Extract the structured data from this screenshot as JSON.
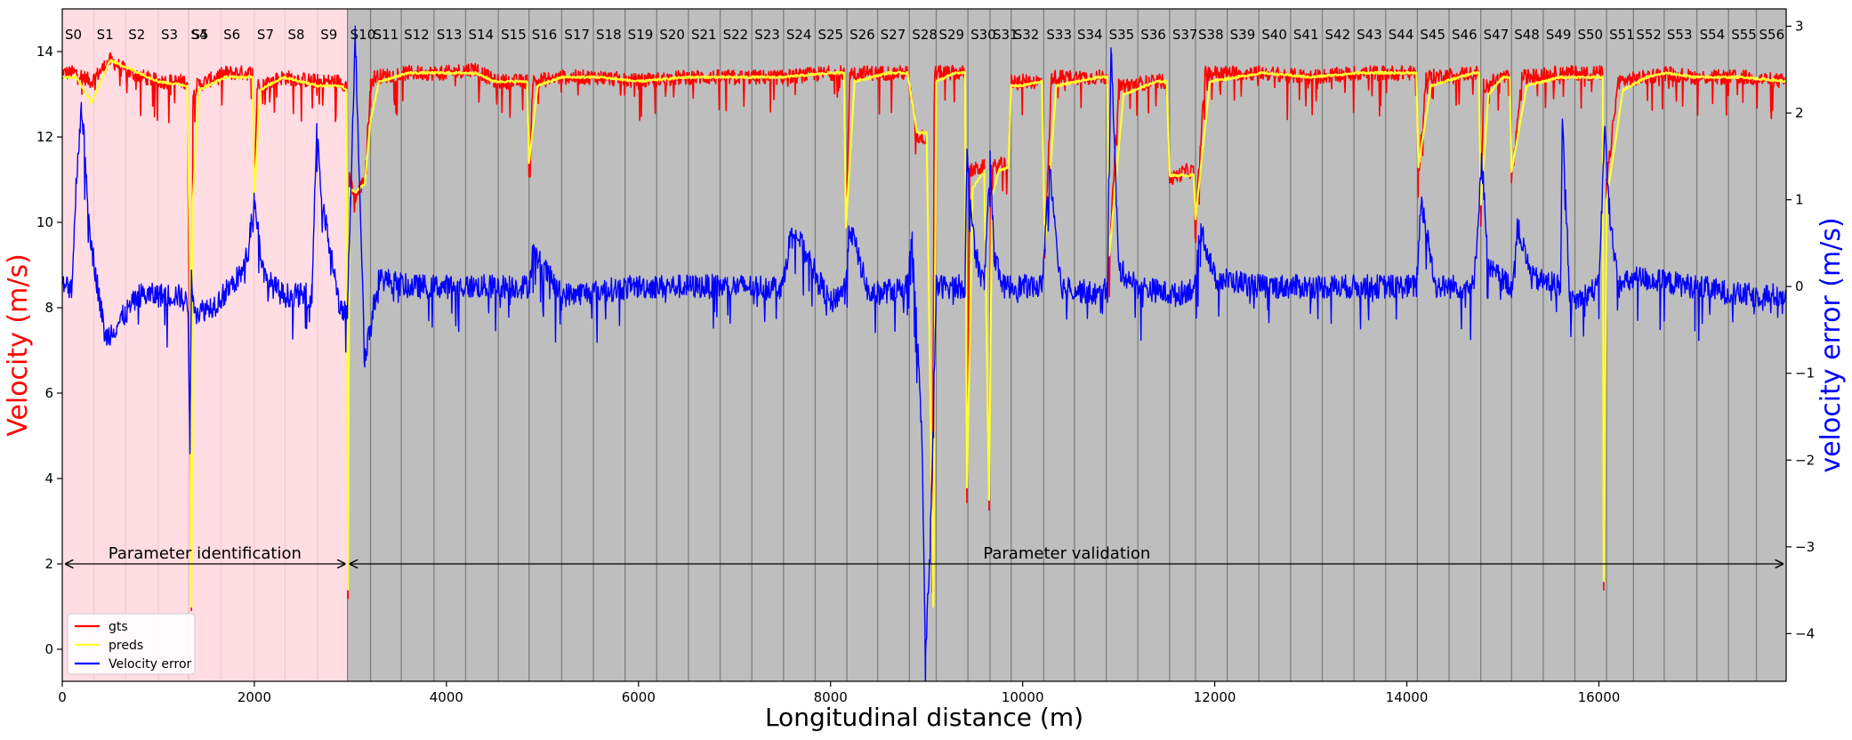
{
  "chart_data": {
    "type": "line",
    "xlabel": "Longitudinal distance (m)",
    "ylabel_left": "Velocity (m/s)",
    "ylabel_right": "velocity error (m/s)",
    "xlim": [
      0,
      17950
    ],
    "ylim_left": [
      -0.75,
      15.0
    ],
    "ylim_right": [
      -4.55,
      3.2
    ],
    "x_ticks": [
      "0",
      "2000",
      "4000",
      "6000",
      "8000",
      "10000",
      "12000",
      "14000",
      "16000"
    ],
    "y_left_ticks": [
      "0",
      "2",
      "4",
      "6",
      "8",
      "10",
      "12",
      "14"
    ],
    "y_right_ticks": [
      "−4",
      "−3",
      "−2",
      "−1",
      "0",
      "1",
      "2",
      "3"
    ],
    "grid": false,
    "colors": {
      "gts": "#ff0000",
      "preds": "#ffff33",
      "error": "#0000ff",
      "identification_bg": "#ffdde3",
      "validation_bg": "#bebebe",
      "left_label": "#ff0000",
      "right_label": "#0000ff"
    },
    "regions": [
      {
        "label": "Parameter identification",
        "x_start": 0,
        "x_end": 2970,
        "fill": "pink"
      },
      {
        "label": "Parameter validation",
        "x_start": 2970,
        "x_end": 17950,
        "fill": "gray"
      }
    ],
    "annotation_arrow_y": 2.0,
    "segment_boundaries": [
      0,
      330,
      660,
      1000,
      1310,
      1320,
      1650,
      2000,
      2320,
      2660,
      2970,
      3210,
      3530,
      3870,
      4200,
      4540,
      4860,
      5200,
      5530,
      5860,
      6190,
      6520,
      6850,
      7180,
      7510,
      7840,
      8170,
      8490,
      8820,
      9100,
      9430,
      9660,
      9880,
      10220,
      10540,
      10870,
      11200,
      11530,
      11800,
      12130,
      12460,
      12790,
      13120,
      13450,
      13780,
      14110,
      14440,
      14770,
      15090,
      15420,
      15750,
      16080,
      16360,
      16680,
      17020,
      17350,
      17640
    ],
    "segment_labels": [
      "S0",
      "S1",
      "S2",
      "S3",
      "S4",
      "S5",
      "S6",
      "S7",
      "S8",
      "S9",
      "S10",
      "S11",
      "S12",
      "S13",
      "S14",
      "S15",
      "S16",
      "S17",
      "S18",
      "S19",
      "S20",
      "S21",
      "S22",
      "S23",
      "S24",
      "S25",
      "S26",
      "S27",
      "S28",
      "S29",
      "S30",
      "S31",
      "S32",
      "S33",
      "S34",
      "S35",
      "S36",
      "S37",
      "S38",
      "S39",
      "S40",
      "S41",
      "S42",
      "S43",
      "S44",
      "S45",
      "S46",
      "S47",
      "S48",
      "S49",
      "S50",
      "S51",
      "S52",
      "S53",
      "S54",
      "S55",
      "S56"
    ],
    "series": [
      {
        "name": "gts",
        "x": [
          0,
          150,
          300,
          500,
          700,
          1000,
          1300,
          1330,
          1345,
          1360,
          1400,
          1700,
          1980,
          2000,
          2030,
          2300,
          2660,
          2900,
          2960,
          2975,
          2990,
          3050,
          3150,
          3210,
          3250,
          3600,
          4000,
          4300,
          4500,
          4840,
          4860,
          4900,
          5200,
          5600,
          6000,
          6500,
          7000,
          7500,
          8000,
          8140,
          8160,
          8200,
          8600,
          8800,
          8900,
          9000,
          9050,
          9060,
          9080,
          9300,
          9400,
          9420,
          9450,
          9600,
          9650,
          9670,
          9700,
          9850,
          9880,
          9950,
          10200,
          10230,
          10300,
          10800,
          10880,
          10900,
          11000,
          11400,
          11500,
          11530,
          11700,
          11780,
          11800,
          11900,
          12500,
          13000,
          13500,
          14000,
          14100,
          14120,
          14200,
          14700,
          14750,
          14770,
          14800,
          15000,
          15070,
          15090,
          15200,
          15600,
          15700,
          16040,
          16050,
          16080,
          16200,
          16500,
          16700,
          17000,
          17500,
          17950
        ],
        "y": [
          13.5,
          13.5,
          13.3,
          13.8,
          13.5,
          13.3,
          13.3,
          6.0,
          0.8,
          13.0,
          13.2,
          13.5,
          13.5,
          10.8,
          13.2,
          13.4,
          13.3,
          13.3,
          13.2,
          1.2,
          11.0,
          10.6,
          11.0,
          13.2,
          13.4,
          13.5,
          13.5,
          13.6,
          13.3,
          13.3,
          11.2,
          13.3,
          13.4,
          13.4,
          13.3,
          13.4,
          13.4,
          13.4,
          13.5,
          13.5,
          9.8,
          13.5,
          13.5,
          13.5,
          12.0,
          12.0,
          3.7,
          1.2,
          13.5,
          13.5,
          13.5,
          3.6,
          11.2,
          11.3,
          3.4,
          11.2,
          11.3,
          11.4,
          13.3,
          13.3,
          13.3,
          9.2,
          13.4,
          13.4,
          13.4,
          9.0,
          13.2,
          13.3,
          13.3,
          11.0,
          11.2,
          11.2,
          10.0,
          13.5,
          13.5,
          13.4,
          13.5,
          13.5,
          13.5,
          11.1,
          13.4,
          13.5,
          13.5,
          10.2,
          13.2,
          13.4,
          13.4,
          11.0,
          13.4,
          13.5,
          13.5,
          13.5,
          1.4,
          10.9,
          13.3,
          13.4,
          13.5,
          13.4,
          13.4,
          13.3
        ],
        "color": "#ff0000"
      },
      {
        "name": "preds",
        "x": [
          0,
          150,
          300,
          500,
          700,
          1000,
          1300,
          1330,
          1345,
          1360,
          1420,
          1700,
          1980,
          2000,
          2060,
          2300,
          2660,
          2900,
          2960,
          2975,
          2990,
          3050,
          3150,
          3210,
          3300,
          3600,
          4000,
          4300,
          4500,
          4840,
          4860,
          4950,
          5200,
          5600,
          6000,
          6500,
          7000,
          7500,
          8000,
          8140,
          8160,
          8250,
          8600,
          8800,
          8900,
          9000,
          9050,
          9070,
          9100,
          9300,
          9400,
          9420,
          9480,
          9600,
          9650,
          9680,
          9750,
          9850,
          9880,
          9980,
          10200,
          10230,
          10350,
          10800,
          10880,
          10900,
          11050,
          11400,
          11500,
          11530,
          11700,
          11780,
          11800,
          11950,
          12500,
          13000,
          13500,
          14000,
          14100,
          14120,
          14250,
          14700,
          14750,
          14770,
          14850,
          15000,
          15070,
          15090,
          15250,
          15600,
          15700,
          16040,
          16050,
          16080,
          16250,
          16500,
          16700,
          17000,
          17500,
          17950
        ],
        "y": [
          13.4,
          13.4,
          12.8,
          13.8,
          13.6,
          13.3,
          13.2,
          9.0,
          1.0,
          10.5,
          13.1,
          13.4,
          13.4,
          10.6,
          13.1,
          13.4,
          13.2,
          13.2,
          13.1,
          1.4,
          10.8,
          10.7,
          10.9,
          12.4,
          13.3,
          13.5,
          13.5,
          13.5,
          13.3,
          13.3,
          11.4,
          13.2,
          13.4,
          13.4,
          13.3,
          13.4,
          13.4,
          13.4,
          13.5,
          13.5,
          9.9,
          13.3,
          13.5,
          13.5,
          12.1,
          12.1,
          4.0,
          1.0,
          13.3,
          13.5,
          13.5,
          3.8,
          10.8,
          11.2,
          3.5,
          10.6,
          11.2,
          11.3,
          13.2,
          13.2,
          13.3,
          9.4,
          13.2,
          13.4,
          13.4,
          9.2,
          13.0,
          13.3,
          13.3,
          11.1,
          11.1,
          11.1,
          10.1,
          13.3,
          13.5,
          13.4,
          13.5,
          13.5,
          13.5,
          11.3,
          13.2,
          13.5,
          13.5,
          10.4,
          13.0,
          13.4,
          13.4,
          11.2,
          13.2,
          13.4,
          13.4,
          13.4,
          1.6,
          10.5,
          13.1,
          13.4,
          13.5,
          13.4,
          13.4,
          13.3
        ],
        "color": "#ffff33"
      },
      {
        "name": "Velocity error",
        "x": [
          0,
          100,
          150,
          200,
          300,
          450,
          600,
          800,
          1000,
          1200,
          1310,
          1330,
          1345,
          1360,
          1400,
          1600,
          1900,
          2000,
          2100,
          2300,
          2600,
          2650,
          2700,
          2900,
          2970,
          3000,
          3050,
          3150,
          3300,
          3600,
          4000,
          4500,
          4860,
          4900,
          5200,
          6000,
          6500,
          7000,
          7500,
          7600,
          8000,
          8150,
          8200,
          8400,
          8800,
          8850,
          8950,
          8990,
          9050,
          9100,
          9300,
          9400,
          9420,
          9500,
          9600,
          9660,
          9700,
          9800,
          10000,
          10200,
          10280,
          10400,
          10800,
          10880,
          10920,
          11000,
          11200,
          11600,
          11800,
          11850,
          12000,
          12500,
          13000,
          13500,
          14000,
          14100,
          14150,
          14300,
          14700,
          14780,
          14850,
          15100,
          15150,
          15300,
          15600,
          15620,
          15700,
          16000,
          16060,
          16100,
          16200,
          16400,
          17000,
          17500,
          17950
        ],
        "y": [
          0.0,
          0.0,
          1.3,
          2.1,
          0.5,
          -0.6,
          -0.4,
          -0.1,
          -0.1,
          -0.1,
          -0.2,
          -1.8,
          0.1,
          -0.1,
          -0.3,
          -0.2,
          0.2,
          1.0,
          0.1,
          -0.1,
          -0.1,
          1.9,
          1.0,
          -0.3,
          -0.3,
          1.0,
          2.9,
          -0.8,
          0.1,
          0.0,
          0.0,
          0.0,
          0.0,
          0.4,
          -0.1,
          0.0,
          0.0,
          0.0,
          0.0,
          0.7,
          -0.2,
          0.0,
          0.7,
          -0.1,
          0.0,
          0.6,
          -1.7,
          -4.3,
          -2.5,
          0.0,
          0.0,
          0.0,
          1.5,
          0.4,
          0.0,
          1.5,
          0.4,
          0.0,
          0.0,
          0.0,
          1.4,
          0.0,
          -0.1,
          0.0,
          2.8,
          0.2,
          0.0,
          -0.1,
          0.0,
          0.7,
          0.1,
          0.0,
          0.0,
          0.0,
          0.0,
          0.0,
          1.0,
          0.0,
          0.0,
          1.5,
          0.2,
          0.0,
          0.7,
          0.1,
          0.0,
          1.9,
          -0.2,
          0.0,
          1.8,
          1.0,
          0.0,
          0.1,
          0.0,
          -0.1,
          -0.1
        ],
        "color": "#0000ff"
      }
    ],
    "legend": {
      "placement": "lower-left",
      "entries": [
        "gts",
        "preds",
        "Velocity error"
      ]
    }
  }
}
